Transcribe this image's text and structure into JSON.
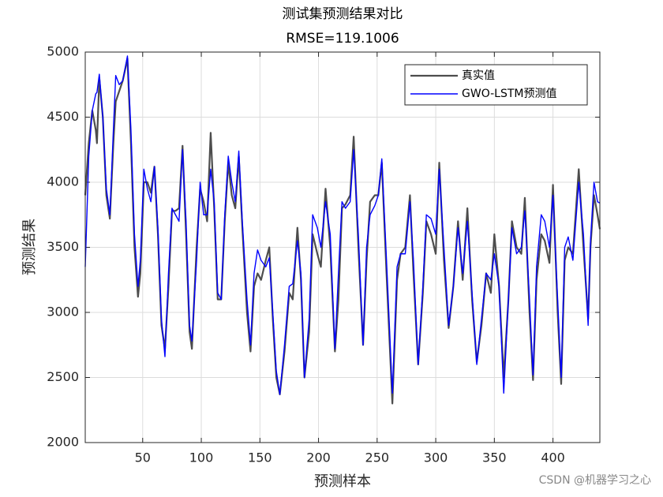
{
  "chart_data": {
    "type": "line",
    "title": "测试集预测结果对比",
    "subtitle": "RMSE=119.1006",
    "x_label": "预测样本",
    "y_label": "预测结果",
    "watermark": "CSDN @机器学习之心",
    "xlim": [
      1,
      440
    ],
    "xticks": [
      50,
      100,
      150,
      200,
      250,
      300,
      350,
      400
    ],
    "ylim": [
      2000,
      5000
    ],
    "yticks": [
      2000,
      2500,
      3000,
      3500,
      4000,
      4500,
      5000
    ],
    "grid": true,
    "legend": "upper right",
    "x": [
      1,
      4,
      7,
      10,
      11,
      13,
      16,
      19,
      22,
      25,
      27,
      30,
      33,
      37,
      40,
      43,
      46,
      48,
      51,
      54,
      57,
      60,
      63,
      66,
      69,
      72,
      75,
      78,
      81,
      84,
      87,
      90,
      92,
      96,
      99,
      102,
      105,
      108,
      111,
      114,
      117,
      120,
      123,
      126,
      129,
      132,
      135,
      139,
      142,
      145,
      148,
      151,
      155,
      158,
      161,
      164,
      167,
      171,
      175,
      178,
      182,
      185,
      188,
      192,
      195,
      199,
      202,
      206,
      210,
      214,
      217,
      220,
      223,
      227,
      230,
      234,
      238,
      241,
      244,
      248,
      251,
      254,
      258,
      263,
      267,
      270,
      274,
      278,
      281,
      285,
      289,
      292,
      296,
      300,
      303,
      307,
      311,
      315,
      319,
      323,
      327,
      331,
      335,
      339,
      343,
      347,
      350,
      354,
      358,
      362,
      365,
      369,
      373,
      376,
      380,
      383,
      386,
      390,
      393,
      397,
      400,
      404,
      407,
      410,
      413,
      417,
      422,
      426,
      430,
      432,
      435,
      438,
      440
    ],
    "series": [
      {
        "name": "真实值",
        "color": "#4d4d4d",
        "values": [
          3900,
          4300,
          4550,
          4400,
          4300,
          4800,
          4500,
          3900,
          3720,
          4300,
          4620,
          4700,
          4780,
          4950,
          4300,
          3500,
          3120,
          3300,
          4000,
          4000,
          3920,
          4120,
          3600,
          2900,
          2720,
          3200,
          3780,
          3780,
          3800,
          4280,
          3600,
          2850,
          2720,
          3500,
          3950,
          3850,
          3700,
          4380,
          3800,
          3100,
          3100,
          3700,
          4150,
          3900,
          3800,
          4200,
          3650,
          3000,
          2700,
          3200,
          3300,
          3250,
          3400,
          3500,
          2950,
          2500,
          2370,
          2700,
          3150,
          3100,
          3650,
          3250,
          2500,
          2850,
          3600,
          3450,
          3350,
          3950,
          3500,
          2700,
          3100,
          3800,
          3830,
          3900,
          4350,
          3500,
          2750,
          3400,
          3850,
          3900,
          3900,
          4150,
          3300,
          2300,
          3250,
          3450,
          3500,
          3900,
          3300,
          2600,
          3150,
          3700,
          3600,
          3450,
          4150,
          3400,
          2880,
          3200,
          3700,
          3250,
          3800,
          3100,
          2620,
          2900,
          3300,
          3150,
          3600,
          3200,
          2500,
          3100,
          3700,
          3500,
          3450,
          3880,
          3000,
          2480,
          3250,
          3600,
          3550,
          3380,
          3980,
          3000,
          2450,
          3400,
          3500,
          3450,
          4100,
          3500,
          2950,
          3500,
          3900,
          3750,
          3640
        ]
      },
      {
        "name": "GWO-LSTM预测值",
        "color": "#0000ff",
        "values": [
          3350,
          4200,
          4550,
          4680,
          4690,
          4830,
          4500,
          3950,
          3750,
          4400,
          4820,
          4750,
          4780,
          4970,
          4400,
          3600,
          3200,
          3400,
          4100,
          3950,
          3850,
          4120,
          3650,
          2950,
          2660,
          3300,
          3800,
          3750,
          3700,
          4250,
          3700,
          2900,
          2780,
          3400,
          4000,
          3750,
          3750,
          4100,
          3850,
          3150,
          3100,
          3750,
          4200,
          4000,
          3850,
          4240,
          3700,
          3100,
          2750,
          3300,
          3480,
          3400,
          3350,
          3420,
          3000,
          2550,
          2370,
          2750,
          3200,
          3220,
          3550,
          3300,
          2500,
          2950,
          3750,
          3650,
          3500,
          3850,
          3600,
          2720,
          3300,
          3850,
          3800,
          3850,
          4250,
          3600,
          2750,
          3500,
          3750,
          3820,
          3900,
          4180,
          3400,
          2380,
          3350,
          3450,
          3450,
          3850,
          3400,
          2600,
          3200,
          3750,
          3720,
          3600,
          4100,
          3500,
          2900,
          3200,
          3650,
          3300,
          3700,
          3150,
          2600,
          2950,
          3300,
          3250,
          3450,
          3200,
          2380,
          3100,
          3650,
          3450,
          3500,
          3780,
          3100,
          2520,
          3350,
          3750,
          3700,
          3500,
          3900,
          3100,
          2500,
          3500,
          3580,
          3400,
          4000,
          3600,
          2900,
          3550,
          4000,
          3850,
          3840
        ]
      }
    ]
  }
}
